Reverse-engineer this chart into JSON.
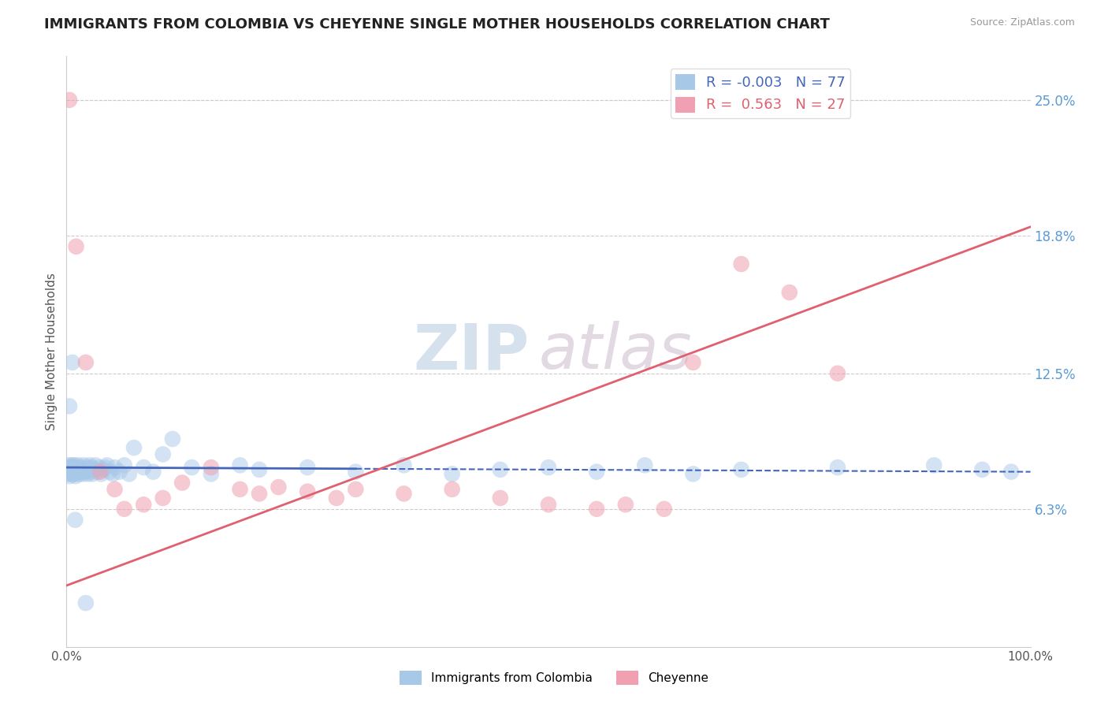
{
  "title": "IMMIGRANTS FROM COLOMBIA VS CHEYENNE SINGLE MOTHER HOUSEHOLDS CORRELATION CHART",
  "source": "Source: ZipAtlas.com",
  "ylabel": "Single Mother Households",
  "watermark": "ZIPatlas",
  "xmin": 0.0,
  "xmax": 100.0,
  "ymin": 0.0,
  "ymax": 0.27,
  "yticks": [
    0.063,
    0.125,
    0.188,
    0.25
  ],
  "ytick_labels": [
    "6.3%",
    "12.5%",
    "18.8%",
    "25.0%"
  ],
  "blue_R": -0.003,
  "blue_N": 77,
  "pink_R": 0.563,
  "pink_N": 27,
  "blue_color": "#A8C8E8",
  "pink_color": "#F0A0B0",
  "blue_line_color": "#4466BB",
  "pink_line_color": "#E06070",
  "background_color": "#FFFFFF",
  "grid_color": "#CCCCCC",
  "blue_scatter_x": [
    0.1,
    0.15,
    0.2,
    0.25,
    0.3,
    0.35,
    0.4,
    0.45,
    0.5,
    0.55,
    0.6,
    0.65,
    0.7,
    0.75,
    0.8,
    0.85,
    0.9,
    0.95,
    1.0,
    1.1,
    1.2,
    1.3,
    1.4,
    1.5,
    1.6,
    1.7,
    1.8,
    1.9,
    2.0,
    2.1,
    2.2,
    2.3,
    2.4,
    2.5,
    2.6,
    2.7,
    2.8,
    3.0,
    3.2,
    3.4,
    3.6,
    3.8,
    4.0,
    4.2,
    4.5,
    4.8,
    5.0,
    5.5,
    6.0,
    6.5,
    7.0,
    8.0,
    9.0,
    10.0,
    11.0,
    13.0,
    15.0,
    18.0,
    20.0,
    25.0,
    30.0,
    35.0,
    40.0,
    45.0,
    50.0,
    55.0,
    60.0,
    65.0,
    70.0,
    80.0,
    90.0,
    95.0,
    98.0,
    0.3,
    0.6,
    0.9,
    2.0
  ],
  "blue_scatter_y": [
    0.082,
    0.079,
    0.081,
    0.083,
    0.08,
    0.078,
    0.082,
    0.079,
    0.08,
    0.083,
    0.081,
    0.079,
    0.082,
    0.08,
    0.083,
    0.079,
    0.081,
    0.078,
    0.082,
    0.08,
    0.083,
    0.079,
    0.081,
    0.082,
    0.08,
    0.079,
    0.083,
    0.081,
    0.08,
    0.082,
    0.079,
    0.081,
    0.083,
    0.08,
    0.082,
    0.079,
    0.081,
    0.083,
    0.08,
    0.082,
    0.079,
    0.081,
    0.082,
    0.083,
    0.08,
    0.079,
    0.082,
    0.08,
    0.083,
    0.079,
    0.091,
    0.082,
    0.08,
    0.088,
    0.095,
    0.082,
    0.079,
    0.083,
    0.081,
    0.082,
    0.08,
    0.083,
    0.079,
    0.081,
    0.082,
    0.08,
    0.083,
    0.079,
    0.081,
    0.082,
    0.083,
    0.081,
    0.08,
    0.11,
    0.13,
    0.058,
    0.02
  ],
  "pink_scatter_x": [
    0.3,
    1.0,
    2.0,
    3.5,
    5.0,
    6.0,
    8.0,
    10.0,
    12.0,
    15.0,
    18.0,
    20.0,
    22.0,
    25.0,
    28.0,
    30.0,
    35.0,
    40.0,
    45.0,
    50.0,
    55.0,
    58.0,
    62.0,
    65.0,
    70.0,
    75.0,
    80.0
  ],
  "pink_scatter_y": [
    0.25,
    0.183,
    0.13,
    0.08,
    0.072,
    0.063,
    0.065,
    0.068,
    0.075,
    0.082,
    0.072,
    0.07,
    0.073,
    0.071,
    0.068,
    0.072,
    0.07,
    0.072,
    0.068,
    0.065,
    0.063,
    0.065,
    0.063,
    0.13,
    0.175,
    0.162,
    0.125
  ],
  "blue_line_y_at_0": 0.082,
  "blue_line_y_at_100": 0.08,
  "pink_line_y_at_0": 0.028,
  "pink_line_y_at_100": 0.192
}
